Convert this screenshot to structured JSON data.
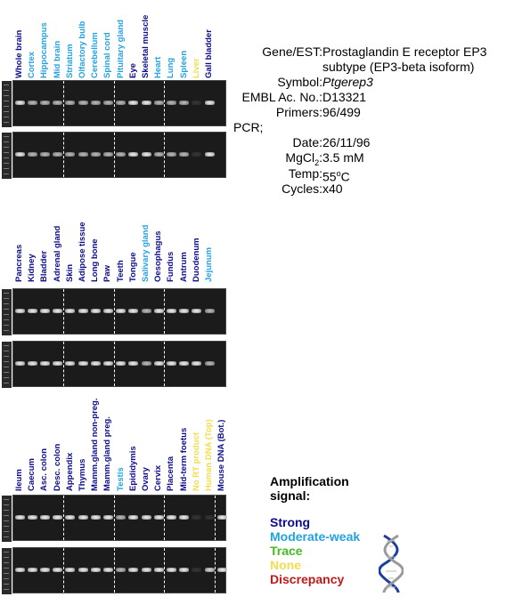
{
  "colors": {
    "strong": "#0c0c8c",
    "moderate_weak": "#22a3e0",
    "trace": "#44bb22",
    "none": "#f2dd4a",
    "discrepancy": "#c21818"
  },
  "panels": [
    {
      "lanes": [
        {
          "label": "Whole brain",
          "signal": "strong"
        },
        {
          "label": "Cortex",
          "signal": "moderate_weak"
        },
        {
          "label": "Hippocampus",
          "signal": "moderate_weak"
        },
        {
          "label": "Mid brain",
          "signal": "moderate_weak"
        },
        {
          "label": "Striatum",
          "signal": "moderate_weak"
        },
        {
          "label": "Olfactory bulb",
          "signal": "moderate_weak"
        },
        {
          "label": "Cerebellum",
          "signal": "moderate_weak"
        },
        {
          "label": "Spinal cord",
          "signal": "moderate_weak"
        },
        {
          "label": "Pituitary gland",
          "signal": "moderate_weak"
        },
        {
          "label": "Eye",
          "signal": "strong"
        },
        {
          "label": "Skeletal muscle",
          "signal": "strong"
        },
        {
          "label": "Heart",
          "signal": "moderate_weak"
        },
        {
          "label": "Lung",
          "signal": "moderate_weak"
        },
        {
          "label": "Spleen",
          "signal": "moderate_weak"
        },
        {
          "label": "Liver",
          "signal": "none"
        },
        {
          "label": "Gall bladder",
          "signal": "strong"
        }
      ]
    },
    {
      "lanes": [
        {
          "label": "Pancreas",
          "signal": "strong"
        },
        {
          "label": "Kidney",
          "signal": "strong"
        },
        {
          "label": "Bladder",
          "signal": "strong"
        },
        {
          "label": "Adrenal gland",
          "signal": "strong"
        },
        {
          "label": "Skin",
          "signal": "strong"
        },
        {
          "label": "Adipose tissue",
          "signal": "strong"
        },
        {
          "label": "Long bone",
          "signal": "strong"
        },
        {
          "label": "Paw",
          "signal": "strong"
        },
        {
          "label": "Teeth",
          "signal": "strong"
        },
        {
          "label": "Tongue",
          "signal": "strong"
        },
        {
          "label": "Salivary gland",
          "signal": "moderate_weak"
        },
        {
          "label": "Oesophagus",
          "signal": "strong"
        },
        {
          "label": "Fundus",
          "signal": "strong"
        },
        {
          "label": "Antrum",
          "signal": "strong"
        },
        {
          "label": "Duodenum",
          "signal": "strong"
        },
        {
          "label": "Jejunum",
          "signal": "moderate_weak"
        }
      ]
    },
    {
      "lanes": [
        {
          "label": "Ileum",
          "signal": "strong"
        },
        {
          "label": "Caecum",
          "signal": "strong"
        },
        {
          "label": "Asc. colon",
          "signal": "strong"
        },
        {
          "label": "Desc. colon",
          "signal": "strong"
        },
        {
          "label": "Appendix",
          "signal": "strong"
        },
        {
          "label": "Thymus",
          "signal": "strong"
        },
        {
          "label": "Mamm.gland non-preg.",
          "signal": "strong"
        },
        {
          "label": "Mamm.gland preg.",
          "signal": "strong"
        },
        {
          "label": "Testis",
          "signal": "moderate_weak"
        },
        {
          "label": "Epididymis",
          "signal": "strong"
        },
        {
          "label": "Ovary",
          "signal": "strong"
        },
        {
          "label": "Cervix",
          "signal": "strong"
        },
        {
          "label": "Placenta",
          "signal": "strong"
        },
        {
          "label": "Mid-term foetus",
          "signal": "strong"
        },
        {
          "label": "No RT product",
          "signal": "none"
        },
        {
          "label": "Human DNA (Top)",
          "signal": "none"
        },
        {
          "label": "Mouse DNA (Bot.)",
          "signal": "strong"
        }
      ]
    }
  ],
  "info": {
    "gene_key": "Gene/EST:",
    "gene_line1": "Prostaglandin E receptor EP3",
    "gene_line2": "subtype (EP3-beta isoform)",
    "symbol_key": "Symbol:",
    "symbol_val": "Ptgerep3",
    "embl_key": "EMBL Ac. No.:",
    "embl_val": "D13321",
    "primers_key": "Primers:",
    "primers_val": "96/499",
    "pcr_key": "PCR;",
    "date_key": "Date:",
    "date_val": "26/11/96",
    "mgcl_key_a": "MgCl",
    "mgcl_key_sub": "2",
    "mgcl_key_b": ":",
    "mgcl_val": "3.5 mM",
    "temp_key": "Temp:",
    "temp_val_a": "55",
    "temp_val_sup": "o",
    "temp_val_b": "C",
    "cycles_key": "Cycles:",
    "cycles_val": "x40"
  },
  "legend": {
    "title_line1": "Amplification",
    "title_line2": "signal:",
    "strong": "Strong",
    "moderate_weak": "Moderate-weak",
    "trace": "Trace",
    "none": "None",
    "discrepancy": "Discrepancy"
  }
}
